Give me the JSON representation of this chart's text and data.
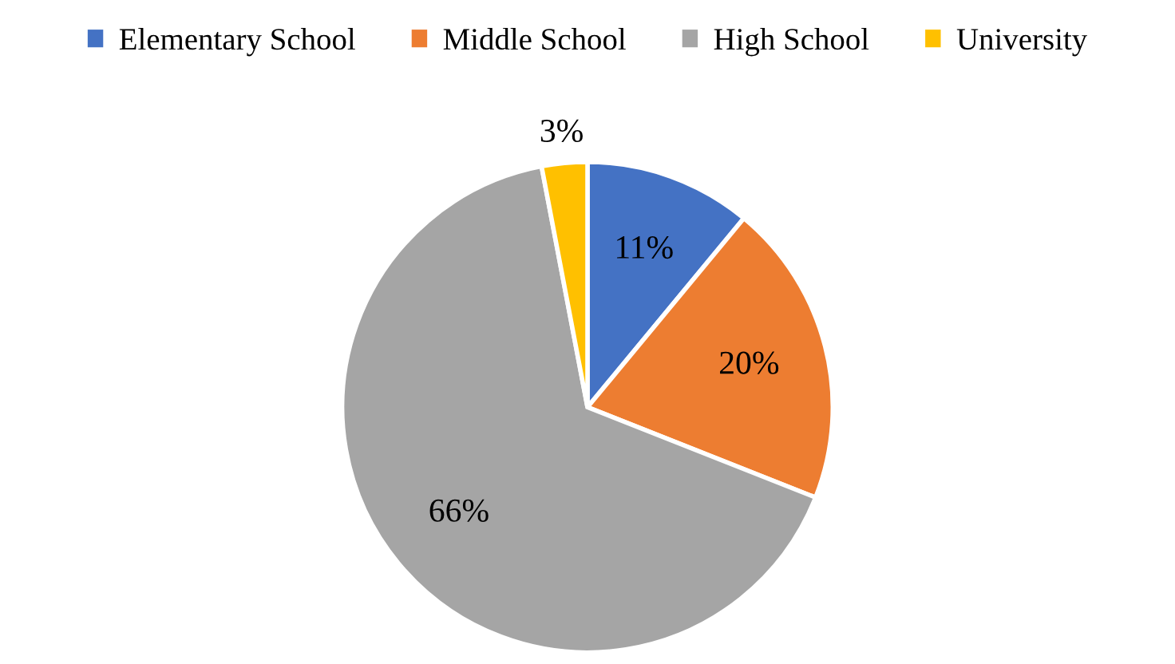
{
  "chart_data": {
    "type": "pie",
    "categories": [
      "Elementary School",
      "Middle School",
      "High School",
      "University"
    ],
    "values": [
      11,
      20,
      66,
      3
    ],
    "colors": [
      "#4472c4",
      "#ed7d31",
      "#a5a5a5",
      "#ffc000"
    ],
    "value_labels": [
      "11%",
      "20%",
      "66%",
      "3%"
    ],
    "legend": "top"
  }
}
